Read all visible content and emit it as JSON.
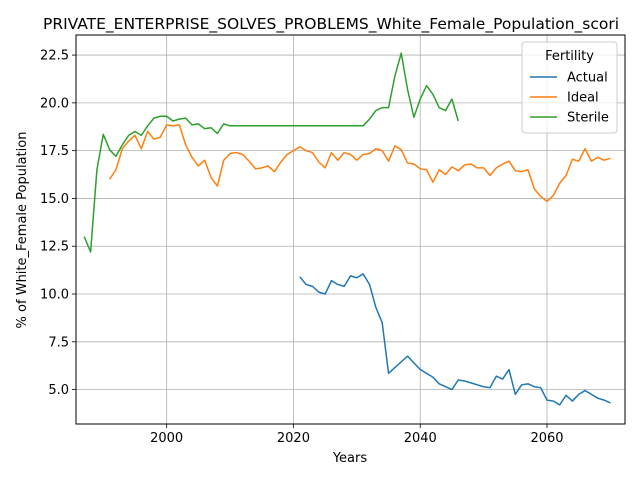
{
  "chart_data": {
    "type": "line",
    "title": "PRIVATE_ENTERPRISE_SOLVES_PROBLEMS_White_Female_Population_scori",
    "xlabel": "Years",
    "ylabel": "% of White_Female Population",
    "xlim": [
      1985.7,
      2072.3
    ],
    "ylim": [
      3.2,
      23.55
    ],
    "xticks": [
      2000,
      2020,
      2040,
      2060
    ],
    "yticks": [
      5.0,
      7.5,
      10.0,
      12.5,
      15.0,
      17.5,
      20.0,
      22.5
    ],
    "xtick_labels": [
      "2000",
      "2020",
      "2040",
      "2060"
    ],
    "ytick_labels": [
      "5.0",
      "7.5",
      "10.0",
      "12.5",
      "15.0",
      "17.5",
      "20.0",
      "22.5"
    ],
    "grid": true,
    "legend_title": "Fertility",
    "legend_position": "top-right",
    "series": [
      {
        "name": "Actual",
        "color": "#1f77b4",
        "points": [
          [
            2021,
            10.9
          ],
          [
            2022,
            10.5
          ],
          [
            2023,
            10.4
          ],
          [
            2024,
            10.1
          ],
          [
            2025,
            10.0
          ],
          [
            2026,
            10.7
          ],
          [
            2027,
            10.5
          ],
          [
            2028,
            10.4
          ],
          [
            2029,
            10.95
          ],
          [
            2030,
            10.85
          ],
          [
            2031,
            11.05
          ],
          [
            2032,
            10.5
          ],
          [
            2033,
            9.3
          ],
          [
            2034,
            8.5
          ],
          [
            2035,
            5.85
          ],
          [
            2036,
            6.15
          ],
          [
            2037,
            6.45
          ],
          [
            2038,
            6.75
          ],
          [
            2039,
            6.4
          ],
          [
            2040,
            6.05
          ],
          [
            2041,
            5.85
          ],
          [
            2042,
            5.65
          ],
          [
            2043,
            5.3
          ],
          [
            2044,
            5.15
          ],
          [
            2045,
            5.0
          ],
          [
            2046,
            5.5
          ],
          [
            2047,
            5.45
          ],
          [
            2048,
            5.35
          ],
          [
            2049,
            5.25
          ],
          [
            2050,
            5.15
          ],
          [
            2051,
            5.1
          ],
          [
            2052,
            5.7
          ],
          [
            2053,
            5.55
          ],
          [
            2054,
            6.05
          ],
          [
            2055,
            4.75
          ],
          [
            2056,
            5.25
          ],
          [
            2057,
            5.3
          ],
          [
            2058,
            5.15
          ],
          [
            2059,
            5.1
          ],
          [
            2060,
            4.45
          ],
          [
            2061,
            4.4
          ],
          [
            2062,
            4.2
          ],
          [
            2063,
            4.7
          ],
          [
            2064,
            4.4
          ],
          [
            2065,
            4.75
          ],
          [
            2066,
            4.95
          ],
          [
            2067,
            4.75
          ],
          [
            2068,
            4.55
          ],
          [
            2069,
            4.45
          ],
          [
            2070,
            4.3
          ]
        ]
      },
      {
        "name": "Ideal",
        "color": "#ff7f0e",
        "points": [
          [
            1991,
            16.0
          ],
          [
            1992,
            16.5
          ],
          [
            1993,
            17.6
          ],
          [
            1994,
            18.0
          ],
          [
            1995,
            18.3
          ],
          [
            1996,
            17.6
          ],
          [
            1997,
            18.5
          ],
          [
            1998,
            18.1
          ],
          [
            1999,
            18.2
          ],
          [
            2000,
            18.85
          ],
          [
            2001,
            18.8
          ],
          [
            2002,
            18.85
          ],
          [
            2003,
            17.8
          ],
          [
            2004,
            17.15
          ],
          [
            2005,
            16.7
          ],
          [
            2006,
            17.0
          ],
          [
            2007,
            16.1
          ],
          [
            2008,
            15.65
          ],
          [
            2009,
            17.0
          ],
          [
            2010,
            17.35
          ],
          [
            2011,
            17.4
          ],
          [
            2012,
            17.3
          ],
          [
            2013,
            16.95
          ],
          [
            2014,
            16.55
          ],
          [
            2015,
            16.6
          ],
          [
            2016,
            16.7
          ],
          [
            2017,
            16.4
          ],
          [
            2018,
            16.9
          ],
          [
            2019,
            17.3
          ],
          [
            2020,
            17.5
          ],
          [
            2021,
            17.7
          ],
          [
            2022,
            17.5
          ],
          [
            2023,
            17.4
          ],
          [
            2024,
            16.9
          ],
          [
            2025,
            16.6
          ],
          [
            2026,
            17.4
          ],
          [
            2027,
            17.0
          ],
          [
            2028,
            17.4
          ],
          [
            2029,
            17.3
          ],
          [
            2030,
            17.0
          ],
          [
            2031,
            17.3
          ],
          [
            2032,
            17.35
          ],
          [
            2033,
            17.6
          ],
          [
            2034,
            17.5
          ],
          [
            2035,
            16.95
          ],
          [
            2036,
            17.75
          ],
          [
            2037,
            17.55
          ],
          [
            2038,
            16.85
          ],
          [
            2039,
            16.8
          ],
          [
            2040,
            16.55
          ],
          [
            2041,
            16.5
          ],
          [
            2042,
            15.85
          ],
          [
            2043,
            16.5
          ],
          [
            2044,
            16.25
          ],
          [
            2045,
            16.65
          ],
          [
            2046,
            16.45
          ],
          [
            2047,
            16.75
          ],
          [
            2048,
            16.8
          ],
          [
            2049,
            16.6
          ],
          [
            2050,
            16.6
          ],
          [
            2051,
            16.2
          ],
          [
            2052,
            16.6
          ],
          [
            2053,
            16.8
          ],
          [
            2054,
            16.95
          ],
          [
            2055,
            16.45
          ],
          [
            2056,
            16.4
          ],
          [
            2057,
            16.5
          ],
          [
            2058,
            15.5
          ],
          [
            2059,
            15.1
          ],
          [
            2060,
            14.85
          ],
          [
            2061,
            15.15
          ],
          [
            2062,
            15.8
          ],
          [
            2063,
            16.2
          ],
          [
            2064,
            17.05
          ],
          [
            2065,
            16.95
          ],
          [
            2066,
            17.6
          ],
          [
            2067,
            16.95
          ],
          [
            2068,
            17.15
          ],
          [
            2069,
            17.0
          ],
          [
            2070,
            17.1
          ]
        ]
      },
      {
        "name": "Sterile",
        "color": "#2ca02c",
        "points": [
          [
            1987,
            13.0
          ],
          [
            1988,
            12.2
          ],
          [
            1989,
            16.5
          ],
          [
            1990,
            18.35
          ],
          [
            1991,
            17.55
          ],
          [
            1992,
            17.2
          ],
          [
            1993,
            17.8
          ],
          [
            1994,
            18.3
          ],
          [
            1995,
            18.5
          ],
          [
            1996,
            18.3
          ],
          [
            1997,
            18.8
          ],
          [
            1998,
            19.2
          ],
          [
            1999,
            19.3
          ],
          [
            2000,
            19.3
          ],
          [
            2001,
            19.05
          ],
          [
            2002,
            19.15
          ],
          [
            2003,
            19.2
          ],
          [
            2004,
            18.85
          ],
          [
            2005,
            18.9
          ],
          [
            2006,
            18.65
          ],
          [
            2007,
            18.7
          ],
          [
            2008,
            18.4
          ],
          [
            2009,
            18.9
          ],
          [
            2010,
            18.8
          ],
          [
            2011,
            18.8
          ],
          [
            2012,
            18.8
          ],
          [
            2013,
            18.8
          ],
          [
            2014,
            18.8
          ],
          [
            2015,
            18.8
          ],
          [
            2016,
            18.8
          ],
          [
            2017,
            18.8
          ],
          [
            2018,
            18.8
          ],
          [
            2019,
            18.8
          ],
          [
            2020,
            18.8
          ],
          [
            2021,
            18.8
          ],
          [
            2022,
            18.8
          ],
          [
            2023,
            18.8
          ],
          [
            2024,
            18.8
          ],
          [
            2025,
            18.8
          ],
          [
            2026,
            18.8
          ],
          [
            2027,
            18.8
          ],
          [
            2028,
            18.8
          ],
          [
            2029,
            18.8
          ],
          [
            2030,
            18.8
          ],
          [
            2031,
            18.8
          ],
          [
            2032,
            19.15
          ],
          [
            2033,
            19.6
          ],
          [
            2034,
            19.75
          ],
          [
            2035,
            19.75
          ],
          [
            2036,
            21.4
          ],
          [
            2037,
            22.6
          ],
          [
            2038,
            20.7
          ],
          [
            2039,
            19.25
          ],
          [
            2040,
            20.2
          ],
          [
            2041,
            20.9
          ],
          [
            2042,
            20.45
          ],
          [
            2043,
            19.75
          ],
          [
            2044,
            19.6
          ],
          [
            2045,
            20.2
          ],
          [
            2046,
            19.05
          ]
        ]
      }
    ]
  }
}
